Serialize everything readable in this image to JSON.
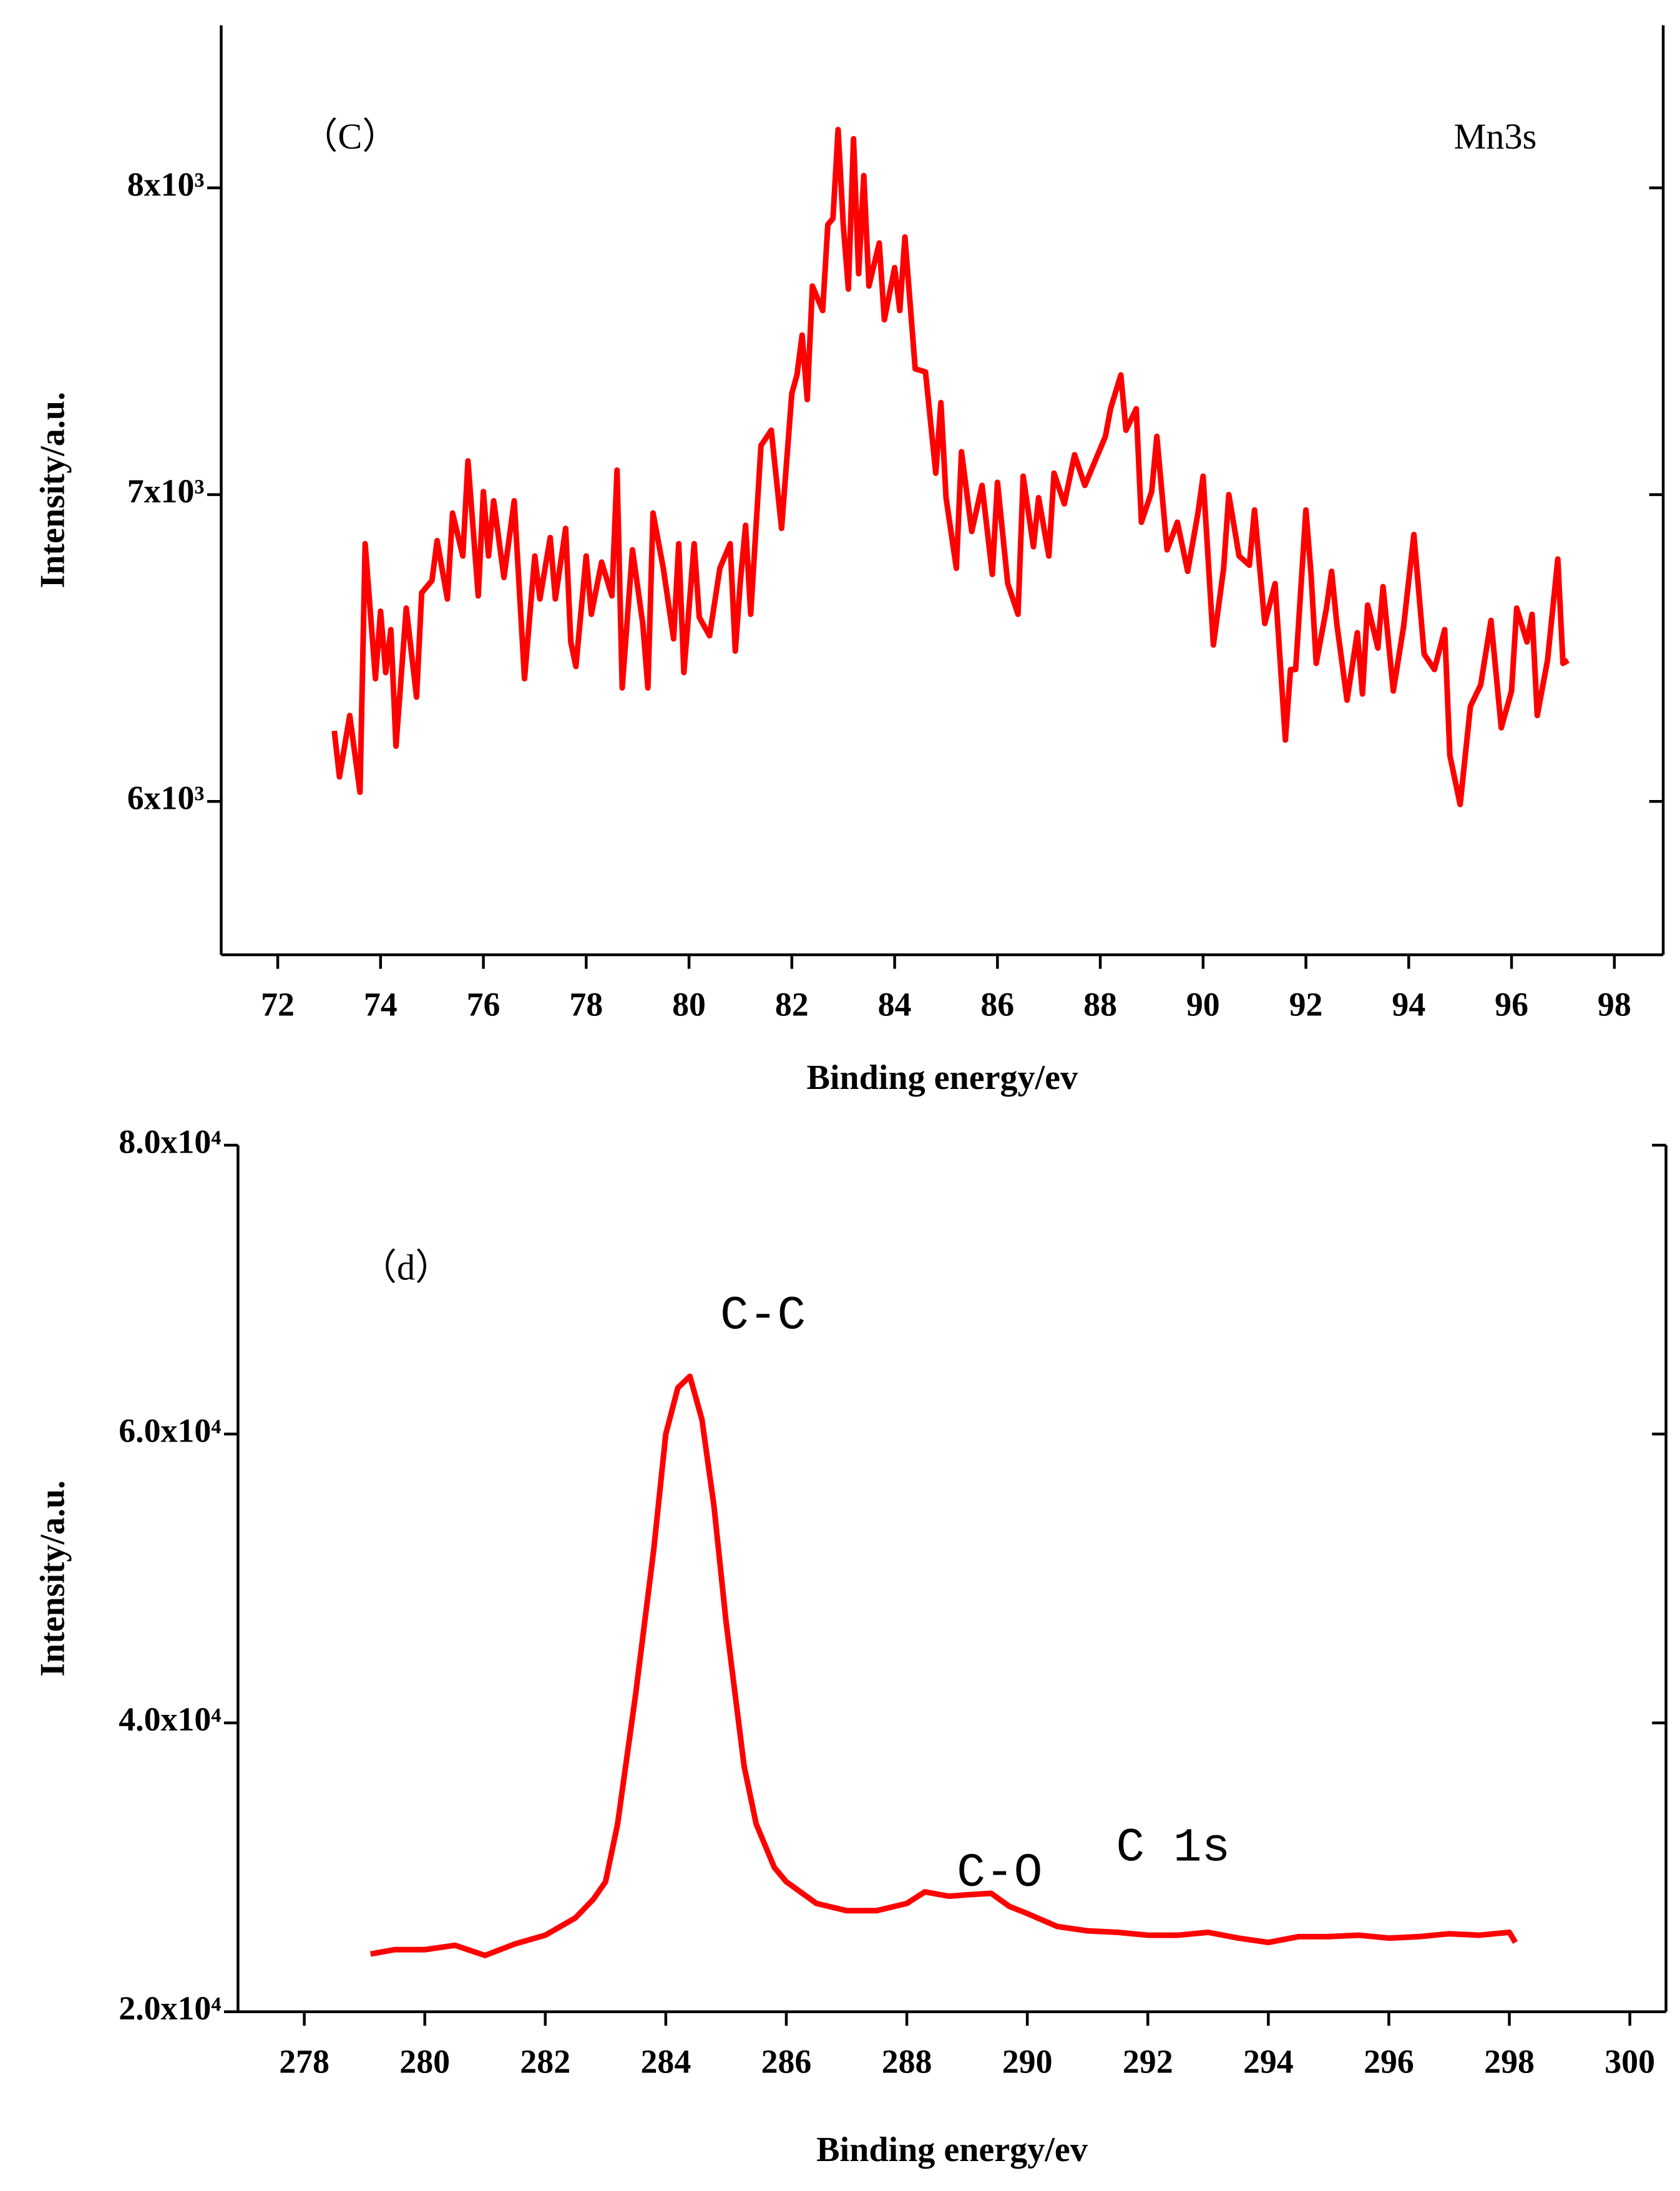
{
  "chart_data": [
    {
      "type": "line",
      "xlabel": "Binding energy/ev",
      "ylabel": "Intensity/a.u.",
      "color": "#ff0000",
      "annotations": [
        "（C）",
        "Mn3s"
      ],
      "xlim": [
        70.9,
        98.95
      ],
      "xticks": [
        72,
        74,
        76,
        78,
        80,
        82,
        84,
        86,
        88,
        90,
        92,
        94,
        96,
        98
      ],
      "ylim": [
        5500,
        8530
      ],
      "yticks": [
        {
          "value": 6000,
          "label": "6x10³"
        },
        {
          "value": 7000,
          "label": "7x10³"
        },
        {
          "value": 8000,
          "label": "8x10³"
        }
      ],
      "x": [
        73.1,
        73.2,
        73.4,
        73.6,
        73.7,
        73.9,
        74.0,
        74.1,
        74.2,
        74.3,
        74.5,
        74.7,
        74.8,
        75.0,
        75.1,
        75.3,
        75.4,
        75.6,
        75.7,
        75.9,
        76.0,
        76.1,
        76.2,
        76.4,
        76.6,
        76.8,
        77.0,
        77.1,
        77.3,
        77.4,
        77.6,
        77.7,
        77.8,
        78.0,
        78.1,
        78.3,
        78.5,
        78.6,
        78.7,
        78.9,
        79.1,
        79.2,
        79.3,
        79.5,
        79.7,
        79.8,
        79.9,
        80.1,
        80.2,
        80.4,
        80.6,
        80.8,
        80.9,
        81.0,
        81.1,
        81.2,
        81.4,
        81.6,
        81.8,
        82.0,
        82.1,
        82.2,
        82.3,
        82.4,
        82.6,
        82.7,
        82.8,
        82.9,
        83.0,
        83.1,
        83.2,
        83.3,
        83.4,
        83.5,
        83.7,
        83.8,
        84.0,
        84.1,
        84.2,
        84.4,
        84.6,
        84.8,
        84.9,
        85.0,
        85.2,
        85.3,
        85.5,
        85.7,
        85.9,
        86.0,
        86.2,
        86.4,
        86.5,
        86.7,
        86.8,
        87.0,
        87.1,
        87.3,
        87.5,
        87.7,
        87.9,
        88.1,
        88.2,
        88.4,
        88.5,
        88.7,
        88.8,
        89.0,
        89.1,
        89.3,
        89.5,
        89.7,
        89.9,
        90.0,
        90.2,
        90.4,
        90.5,
        90.7,
        90.9,
        91.0,
        91.2,
        91.4,
        91.6,
        91.7,
        91.8,
        92.0,
        92.1,
        92.2,
        92.4,
        92.5,
        92.6,
        92.8,
        93.0,
        93.1,
        93.2,
        93.4,
        93.5,
        93.7,
        93.9,
        94.1,
        94.3,
        94.5,
        94.7,
        94.8,
        95.0,
        95.2,
        95.4,
        95.6,
        95.8,
        96.0,
        96.1,
        96.3,
        96.4,
        96.5,
        96.7,
        96.9,
        97.0,
        97.1
      ],
      "values": [
        6230,
        6080,
        6280,
        6030,
        6840,
        6400,
        6620,
        6420,
        6560,
        6180,
        6630,
        6340,
        6680,
        6720,
        6850,
        6660,
        6940,
        6800,
        7110,
        6670,
        7010,
        6800,
        6980,
        6730,
        6980,
        6400,
        6800,
        6660,
        6860,
        6660,
        6890,
        6520,
        6440,
        6800,
        6610,
        6780,
        6670,
        7080,
        6370,
        6820,
        6580,
        6370,
        6940,
        6760,
        6530,
        6840,
        6420,
        6840,
        6600,
        6540,
        6760,
        6840,
        6490,
        6720,
        6900,
        6610,
        7160,
        7210,
        6890,
        7330,
        7390,
        7520,
        7310,
        7680,
        7600,
        7880,
        7900,
        8190,
        7880,
        7670,
        8160,
        7720,
        8040,
        7680,
        7820,
        7570,
        7740,
        7600,
        7840,
        7410,
        7400,
        7070,
        7300,
        6990,
        6760,
        7140,
        6880,
        7030,
        6740,
        7040,
        6710,
        6610,
        7060,
        6830,
        6990,
        6800,
        7070,
        6970,
        7130,
        7030,
        7110,
        7190,
        7280,
        7390,
        7210,
        7280,
        6910,
        7010,
        7190,
        6820,
        6910,
        6750,
        6940,
        7060,
        6510,
        6760,
        7000,
        6800,
        6770,
        6950,
        6580,
        6710,
        6200,
        6430,
        6430,
        6950,
        6740,
        6450,
        6630,
        6750,
        6580,
        6330,
        6550,
        6350,
        6640,
        6500,
        6700,
        6360,
        6570,
        6870,
        6480,
        6430,
        6560,
        6150,
        5990,
        6310,
        6380,
        6590,
        6240,
        6360,
        6630,
        6520,
        6610,
        6280,
        6460,
        6790,
        6450,
        6460
      ]
    },
    {
      "type": "line",
      "xlabel": "Binding energy/ev",
      "ylabel": "Intensity/a.u.",
      "color": "#ff0000",
      "annotations": [
        "（d）",
        "C-C",
        "C-O",
        "C 1s"
      ],
      "xlim": [
        276.9,
        300.6
      ],
      "xticks": [
        278,
        280,
        282,
        284,
        286,
        288,
        290,
        292,
        294,
        296,
        298,
        300
      ],
      "ylim": [
        20000,
        80000
      ],
      "yticks": [
        {
          "value": 20000,
          "label": "2.0x10⁴"
        },
        {
          "value": 40000,
          "label": "4.0x10⁴"
        },
        {
          "value": 60000,
          "label": "6.0x10⁴"
        },
        {
          "value": 80000,
          "label": "8.0x10⁴"
        }
      ],
      "x": [
        279.1,
        279.5,
        280,
        280.5,
        281,
        281.5,
        282,
        282.5,
        282.8,
        283.0,
        283.2,
        283.5,
        283.8,
        284.0,
        284.2,
        284.4,
        284.6,
        284.8,
        285.0,
        285.3,
        285.5,
        285.8,
        286.0,
        286.5,
        287,
        287.5,
        288,
        288.3,
        288.7,
        289.0,
        289.4,
        289.7,
        290,
        290.5,
        291,
        291.5,
        292,
        292.5,
        293,
        293.5,
        294,
        294.5,
        295,
        295.5,
        296,
        296.5,
        297,
        297.5,
        298,
        298.1
      ],
      "values": [
        24000,
        24300,
        24300,
        24600,
        23900,
        24700,
        25300,
        26500,
        27800,
        29000,
        33000,
        42000,
        52000,
        60000,
        63200,
        64000,
        61000,
        55000,
        47000,
        37000,
        33000,
        30000,
        29000,
        27500,
        27000,
        27000,
        27500,
        28300,
        28000,
        28100,
        28200,
        27300,
        26800,
        25900,
        25600,
        25500,
        25300,
        25300,
        25500,
        25100,
        24800,
        25200,
        25200,
        25300,
        25100,
        25200,
        25400,
        25300,
        25500,
        24800
      ]
    }
  ]
}
